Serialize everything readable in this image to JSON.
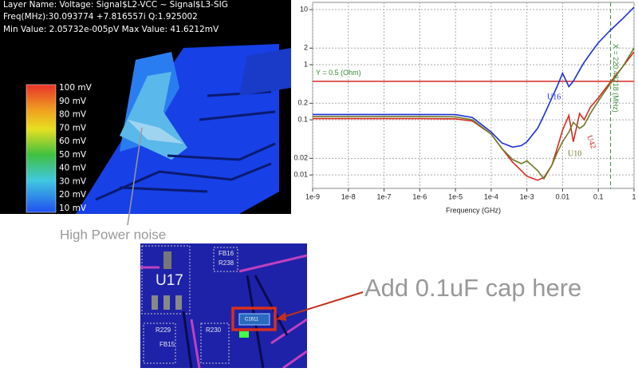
{
  "screenshot": {
    "lines": [
      "Layer Name: Voltage: Signal$L2-VCC ~ Signal$L3-SIG",
      "Freq(MHz):30.093774   +7.816557i Q:1.925002",
      "Min Value: 2.05732e-005pV Max Value: 41.6212mV"
    ],
    "color_scale": [
      "100 mV",
      "90 mV",
      "80 mV",
      "70 mV",
      "60 mV",
      "50 mV",
      "40 mV",
      "30 mV",
      "20 mV",
      "10 mV"
    ]
  },
  "annotations": {
    "noise": "High Power noise",
    "cap": "Add 0.1uF cap here"
  },
  "layout": {
    "component": "U17",
    "refs": [
      "FB16",
      "R238",
      "C1611",
      "R229",
      "R230",
      "FB15"
    ]
  },
  "chart_data": {
    "type": "line",
    "x_label": "Frequency (GHz)",
    "log_x": true,
    "log_y": true,
    "grid": true,
    "x": [
      1e-09,
      1e-06,
      1e-05,
      3e-05,
      0.0001,
      0.0002,
      0.0004,
      0.0007,
      0.001,
      0.002,
      0.003,
      0.005,
      0.007,
      0.01,
      0.015,
      0.02,
      0.03,
      0.04,
      0.06,
      0.1,
      0.2,
      0.5,
      1
    ],
    "series": [
      {
        "name": "U16",
        "color": "#1f2fd8",
        "values": [
          0.125,
          0.125,
          0.124,
          0.11,
          0.06,
          0.038,
          0.032,
          0.034,
          0.04,
          0.07,
          0.12,
          0.25,
          0.4,
          0.7,
          0.4,
          0.5,
          0.8,
          1.1,
          1.6,
          2.5,
          4,
          7,
          11
        ]
      },
      {
        "name": "U42",
        "color": "#d42a20",
        "values": [
          0.105,
          0.105,
          0.104,
          0.095,
          0.055,
          0.03,
          0.017,
          0.012,
          0.0095,
          0.008,
          0.009,
          0.015,
          0.03,
          0.065,
          0.12,
          0.04,
          0.13,
          0.1,
          0.17,
          0.25,
          0.45,
          0.95,
          1.7
        ]
      },
      {
        "name": "U10",
        "color": "#6e7a2a",
        "values": [
          0.115,
          0.115,
          0.113,
          0.1,
          0.055,
          0.03,
          0.019,
          0.016,
          0.018,
          0.012,
          0.0085,
          0.015,
          0.025,
          0.04,
          0.06,
          0.09,
          0.07,
          0.08,
          0.13,
          0.22,
          0.42,
          0.95,
          2
        ]
      }
    ],
    "xlim": [
      1e-09,
      1
    ],
    "ylim": [
      0.0057,
      13.5
    ],
    "xticks": [
      {
        "value": 1e-09,
        "label": "1e-9"
      },
      {
        "value": 1e-08,
        "label": "1e-8"
      },
      {
        "value": 1e-07,
        "label": "1e-7"
      },
      {
        "value": 1e-06,
        "label": "1e-6"
      },
      {
        "value": 1e-05,
        "label": "1e-5"
      },
      {
        "value": 0.0001,
        "label": "1e-4"
      },
      {
        "value": 0.001,
        "label": "1e-3"
      },
      0.01,
      0.1,
      1
    ],
    "yticks": [
      10,
      2,
      1,
      0.2,
      0.1,
      0.02,
      0.01
    ],
    "hline": {
      "value": 0.5,
      "label": "Y = 0.5 (Ohm)",
      "color": "#d42a20"
    },
    "vline": {
      "value": 0.22048218,
      "label": "X = 220.48218 (MHz)",
      "color": "#3a8a3a"
    }
  }
}
